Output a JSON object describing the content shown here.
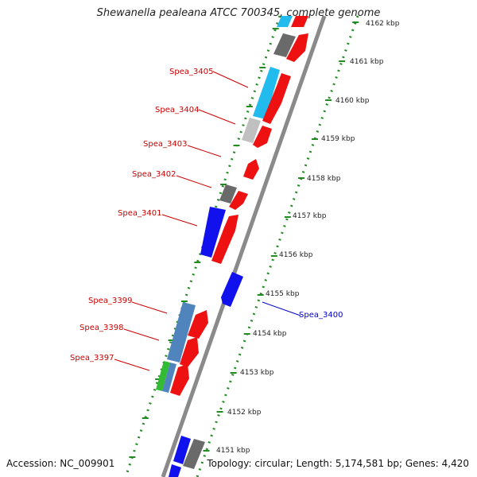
{
  "title": "Shewanella pealeana ATCC 700345, complete genome",
  "footer": {
    "accession": "Accession: NC_009901",
    "summary": "Topology: circular; Length: 5,174,581 bp; Genes: 4,420"
  },
  "ticks": [
    "4162 kbp",
    "4161 kbp",
    "4160 kbp",
    "4159 kbp",
    "4158 kbp",
    "4157 kbp",
    "4156 kbp",
    "4155 kbp",
    "4154 kbp",
    "4153 kbp",
    "4152 kbp",
    "4151 kbp"
  ],
  "gene_labels": [
    {
      "name": "Spea_3405",
      "color": "#cc0000"
    },
    {
      "name": "Spea_3404",
      "color": "#cc0000"
    },
    {
      "name": "Spea_3403",
      "color": "#cc0000"
    },
    {
      "name": "Spea_3402",
      "color": "#cc0000"
    },
    {
      "name": "Spea_3401",
      "color": "#cc0000"
    },
    {
      "name": "Spea_3399",
      "color": "#cc0000"
    },
    {
      "name": "Spea_3398",
      "color": "#cc0000"
    },
    {
      "name": "Spea_3397",
      "color": "#cc0000"
    },
    {
      "name": "Spea_3400",
      "color": "#0000cc"
    }
  ],
  "colors": {
    "backbone": "#8a8a8a",
    "dots": "#228b22",
    "forward": "#ee1111",
    "reverse": "#1111ee",
    "steelblue": "#4f84bd",
    "skyblue": "#22bbee",
    "gray": "#6a6a6a",
    "lightgray": "#c0c0c0",
    "green": "#33bb33"
  }
}
